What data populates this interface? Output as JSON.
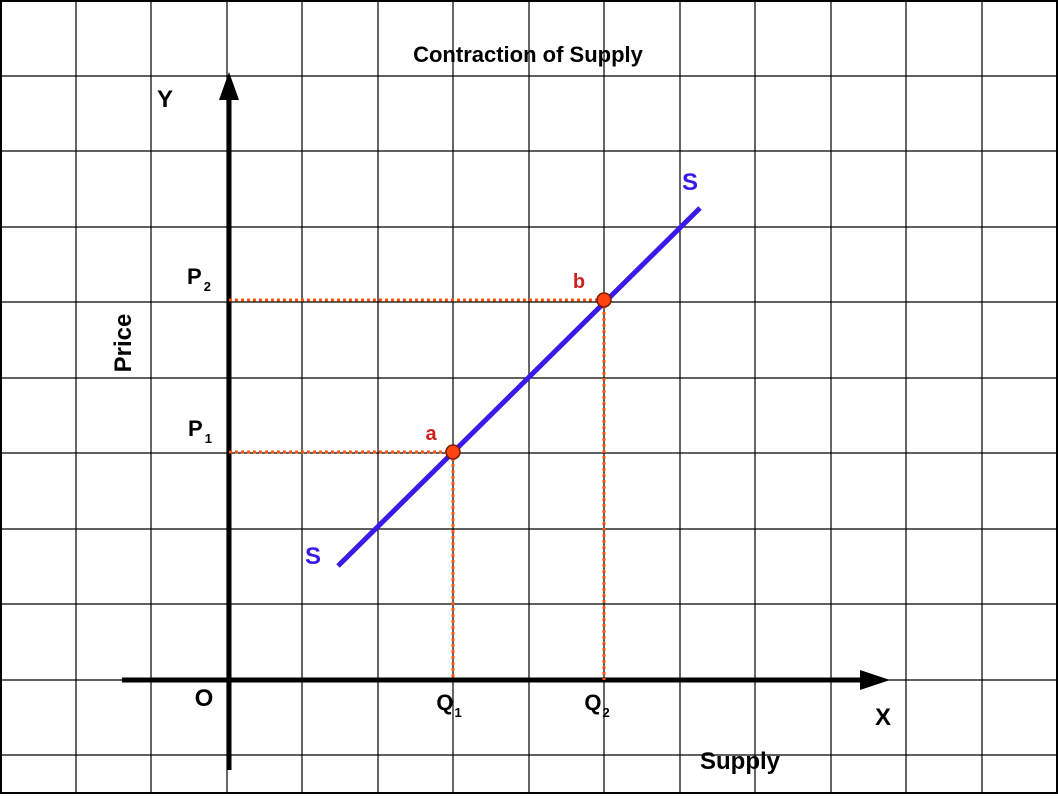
{
  "title": "Contraction of Supply",
  "axes": {
    "y_letter": "Y",
    "x_letter": "X",
    "origin": "O",
    "y_label": "Price",
    "x_label": "Supply"
  },
  "price_levels": [
    {
      "main": "P",
      "sub": "2"
    },
    {
      "main": "P",
      "sub": "1"
    }
  ],
  "quantity_levels": [
    {
      "main": "Q",
      "sub": "1"
    },
    {
      "main": "Q",
      "sub": "2"
    }
  ],
  "curve": {
    "label_top": "S",
    "label_bottom": "S",
    "color": "#3a1ae8"
  },
  "points": [
    {
      "label": "a",
      "color": "#ff4411",
      "label_color": "#cc2222"
    },
    {
      "label": "b",
      "color": "#ff4411",
      "label_color": "#cc2222"
    }
  ],
  "guide_color": "#ff5511"
}
